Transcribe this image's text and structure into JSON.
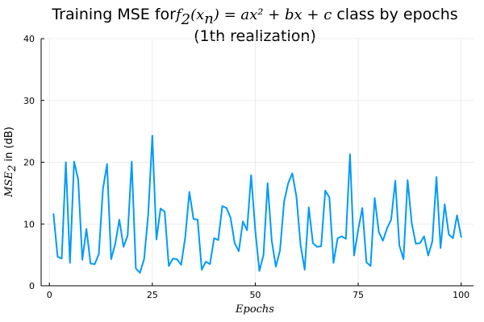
{
  "chart_data": {
    "type": "line",
    "title": {
      "prefix": "Training MSE for",
      "math_func": "f",
      "math_sub": "2",
      "math_arg": "(x",
      "math_arg_sub": "n",
      "math_eq": ") = ax² + bx + c",
      "suffix": " class by epochs",
      "line2": "(1th realization)"
    },
    "xlabel": "Epochs",
    "ylabel": {
      "math": "MSE",
      "sub": "2",
      "text": " in (dB)"
    },
    "xlim": [
      -2,
      103
    ],
    "ylim": [
      0,
      40
    ],
    "xticks": [
      0,
      25,
      50,
      75,
      100
    ],
    "xtick_labels": [
      "0",
      "25",
      "50",
      "75",
      "100"
    ],
    "yticks": [
      0,
      10,
      20,
      30,
      40
    ],
    "ytick_labels": [
      "0",
      "10",
      "20",
      "30",
      "40"
    ],
    "grid": true,
    "legend": "none",
    "series": [
      {
        "color": "#009AFA",
        "x": [
          1,
          2,
          3,
          4,
          5,
          6,
          7,
          8,
          9,
          10,
          11,
          12,
          13,
          14,
          15,
          16,
          17,
          18,
          19,
          20,
          21,
          22,
          23,
          24,
          25,
          26,
          27,
          28,
          29,
          30,
          31,
          32,
          33,
          34,
          35,
          36,
          37,
          38,
          39,
          40,
          41,
          42,
          43,
          44,
          45,
          46,
          47,
          48,
          49,
          50,
          51,
          52,
          53,
          54,
          55,
          56,
          57,
          58,
          59,
          60,
          61,
          62,
          63,
          64,
          65,
          66,
          67,
          68,
          69,
          70,
          71,
          72,
          73,
          74,
          75,
          76,
          77,
          78,
          79,
          80,
          81,
          82,
          83,
          84,
          85,
          86,
          87,
          88,
          89,
          90,
          91,
          92,
          93,
          94,
          95,
          96,
          97,
          98,
          99,
          100
        ],
        "values": [
          11.6,
          4.7,
          4.4,
          20.0,
          3.7,
          20.1,
          17.2,
          4.2,
          9.2,
          3.6,
          3.5,
          5.1,
          15.6,
          19.7,
          4.3,
          6.8,
          10.7,
          6.3,
          8.1,
          20.1,
          2.8,
          2.1,
          4.3,
          11.5,
          24.3,
          7.5,
          12.5,
          12.0,
          3.2,
          4.4,
          4.3,
          3.4,
          7.9,
          15.2,
          10.8,
          10.7,
          2.6,
          3.9,
          3.5,
          7.7,
          7.4,
          12.9,
          12.6,
          11.0,
          6.9,
          5.6,
          10.4,
          9.0,
          17.9,
          9.0,
          2.4,
          5.0,
          16.6,
          7.3,
          3.1,
          5.7,
          13.6,
          16.6,
          18.2,
          14.4,
          6.6,
          2.6,
          12.7,
          6.9,
          6.3,
          6.4,
          15.4,
          14.3,
          3.7,
          7.7,
          8.0,
          7.6,
          21.3,
          4.9,
          9.1,
          12.6,
          3.8,
          3.2,
          14.2,
          8.7,
          7.3,
          9.3,
          10.7,
          17.0,
          6.5,
          4.3,
          17.1,
          10.1,
          6.8,
          6.9,
          8.0,
          4.9,
          7.2,
          17.6,
          6.1,
          13.2,
          8.3,
          7.7,
          11.4,
          7.9
        ]
      }
    ]
  }
}
